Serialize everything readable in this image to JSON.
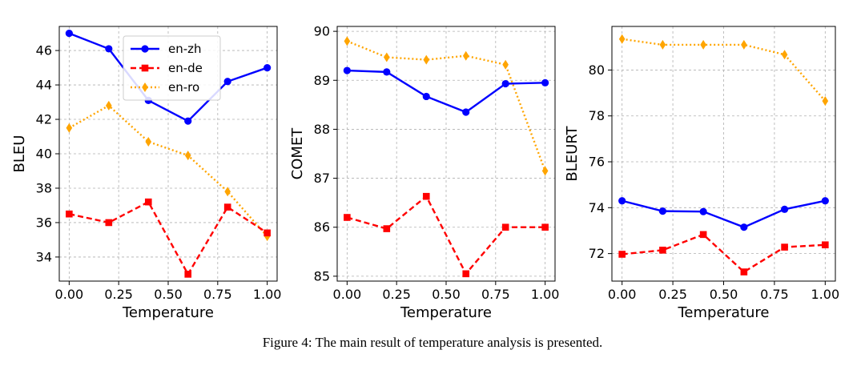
{
  "chart_data": [
    {
      "type": "line",
      "ylabel": "BLEU",
      "xlabel": "Temperature",
      "x": [
        0.0,
        0.2,
        0.4,
        0.6,
        0.8,
        1.0
      ],
      "xlim": [
        -0.05,
        1.05
      ],
      "ylim": [
        32.6,
        47.4
      ],
      "xticks": [
        0.0,
        0.25,
        0.5,
        0.75,
        1.0
      ],
      "xtick_labels": [
        "0.00",
        "0.25",
        "0.50",
        "0.75",
        "1.00"
      ],
      "yticks": [
        34,
        36,
        38,
        40,
        42,
        44,
        46
      ],
      "ytick_labels": [
        "34",
        "36",
        "38",
        "40",
        "42",
        "44",
        "46"
      ],
      "legend": "top-right",
      "series": [
        {
          "name": "en-zh",
          "values": [
            47.0,
            46.1,
            43.1,
            41.9,
            44.2,
            45.0
          ]
        },
        {
          "name": "en-de",
          "values": [
            36.5,
            36.0,
            37.2,
            33.0,
            36.9,
            35.4
          ]
        },
        {
          "name": "en-ro",
          "values": [
            41.5,
            42.8,
            40.7,
            39.9,
            37.8,
            35.2
          ]
        }
      ]
    },
    {
      "type": "line",
      "ylabel": "COMET",
      "xlabel": "Temperature",
      "x": [
        0.0,
        0.2,
        0.4,
        0.6,
        0.8,
        1.0
      ],
      "xlim": [
        -0.05,
        1.05
      ],
      "ylim": [
        84.9,
        90.1
      ],
      "xticks": [
        0.0,
        0.25,
        0.5,
        0.75,
        1.0
      ],
      "xtick_labels": [
        "0.00",
        "0.25",
        "0.50",
        "0.75",
        "1.00"
      ],
      "yticks": [
        85,
        86,
        87,
        88,
        89,
        90
      ],
      "ytick_labels": [
        "85",
        "86",
        "87",
        "88",
        "89",
        "90"
      ],
      "series": [
        {
          "name": "en-zh",
          "values": [
            89.2,
            89.17,
            88.67,
            88.35,
            88.93,
            88.95
          ]
        },
        {
          "name": "en-de",
          "values": [
            86.2,
            85.97,
            86.63,
            85.05,
            86.0,
            86.0
          ]
        },
        {
          "name": "en-ro",
          "values": [
            89.8,
            89.47,
            89.42,
            89.5,
            89.32,
            87.15
          ]
        }
      ]
    },
    {
      "type": "line",
      "ylabel": "BLEURT",
      "xlabel": "Temperature",
      "x": [
        0.0,
        0.2,
        0.4,
        0.6,
        0.8,
        1.0
      ],
      "xlim": [
        -0.05,
        1.05
      ],
      "ylim": [
        70.8,
        81.9
      ],
      "xticks": [
        0.0,
        0.25,
        0.5,
        0.75,
        1.0
      ],
      "xtick_labels": [
        "0.00",
        "0.25",
        "0.50",
        "0.75",
        "1.00"
      ],
      "yticks": [
        72,
        74,
        76,
        78,
        80
      ],
      "ytick_labels": [
        "72",
        "74",
        "76",
        "78",
        "80"
      ],
      "series": [
        {
          "name": "en-zh",
          "values": [
            74.3,
            73.85,
            73.83,
            73.15,
            73.93,
            74.3
          ]
        },
        {
          "name": "en-de",
          "values": [
            71.97,
            72.15,
            72.83,
            71.2,
            72.28,
            72.38
          ]
        },
        {
          "name": "en-ro",
          "values": [
            81.35,
            81.1,
            81.1,
            81.1,
            80.67,
            78.65
          ]
        }
      ]
    }
  ],
  "series_styles": {
    "en-zh": {
      "color": "#0000ff",
      "marker": "circle",
      "line": "solid"
    },
    "en-de": {
      "color": "#ff0000",
      "marker": "square",
      "line": "dashed"
    },
    "en-ro": {
      "color": "#ffa500",
      "marker": "diamond",
      "line": "dotted"
    }
  },
  "caption": "Figure 4: The main result of temperature analysis is presented."
}
